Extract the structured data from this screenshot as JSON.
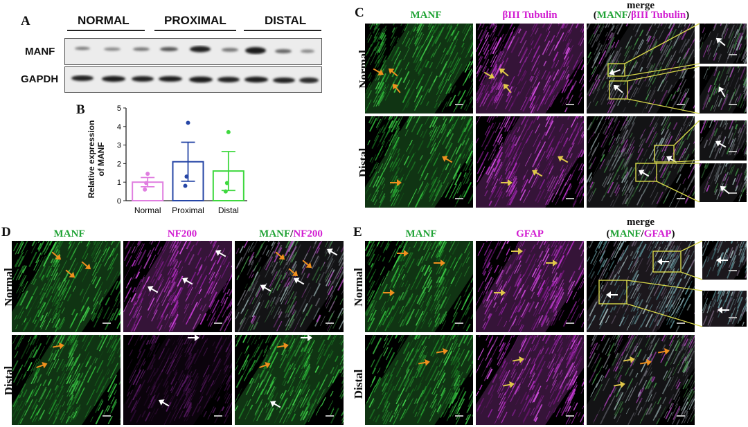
{
  "panels": {
    "A": {
      "label": "A",
      "groups": [
        "NORMAL",
        "PROXIMAL",
        "DISTAL"
      ],
      "bands": [
        "MANF",
        "GAPDH"
      ]
    },
    "B": {
      "label": "B",
      "ylabel_line1": "Relative expression",
      "ylabel_line2": "of MANF"
    },
    "C": {
      "label": "C",
      "col1": "MANF",
      "col2": "βIII Tubulin",
      "merge_top": "merge",
      "merge_open": "(",
      "merge_manf": "MANF",
      "merge_slash": "/",
      "merge_tub": "βIII Tubulin",
      "merge_close": ")",
      "row1": "Normal",
      "row2": "Distal"
    },
    "D": {
      "label": "D",
      "col1": "MANF",
      "col2": "NF200",
      "merge_manf": "MANF",
      "merge_slash": "/",
      "merge_nf": "NF200",
      "row1": "Normal",
      "row2": "Distal"
    },
    "E": {
      "label": "E",
      "col1": "MANF",
      "col2": "GFAP",
      "merge_top": "merge",
      "merge_open": "(",
      "merge_manf": "MANF",
      "merge_slash": "/",
      "merge_gfap": "GFAP",
      "merge_close": ")",
      "row1": "Normal",
      "row2": "Distal"
    }
  },
  "colors": {
    "green": "#21a336",
    "magenta": "#d21fd2",
    "normal_bar": "#e07ee0",
    "proximal_bar": "#2646a6",
    "distal_bar": "#3ed83e",
    "arrow_orange": "#f0901e",
    "zoom_box": "#d8d84a"
  },
  "chart_data": {
    "type": "bar",
    "title": "",
    "categories": [
      "Normal",
      "Proximal",
      "Distal"
    ],
    "values": [
      1.0,
      2.1,
      1.6
    ],
    "error": [
      0.25,
      1.05,
      1.05
    ],
    "points": [
      [
        1.45,
        0.95,
        0.6
      ],
      [
        4.2,
        1.3,
        0.8
      ],
      [
        3.7,
        0.95,
        0.5
      ]
    ],
    "xlabel": "",
    "ylabel": "Relative expression of MANF",
    "ylim": [
      0,
      5
    ],
    "yticks": [
      0,
      1,
      2,
      3,
      4,
      5
    ],
    "grid": false,
    "legend": "none"
  }
}
